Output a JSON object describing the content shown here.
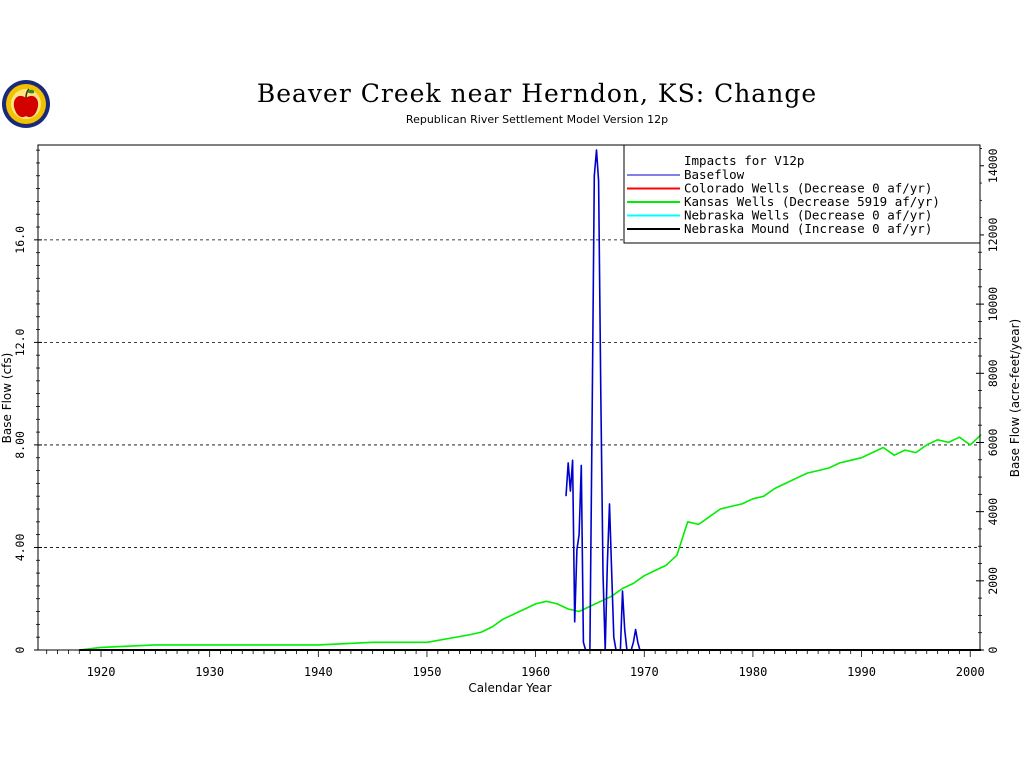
{
  "logo": {
    "icon": "apple-seal-icon"
  },
  "chart_data": {
    "type": "line",
    "title": "Beaver Creek near Herndon, KS: Change",
    "subtitle": "Republican River Settlement Model Version 12p",
    "xlabel": "Calendar Year",
    "ylabel": "Base Flow (cfs)",
    "y2label": "Base Flow (acre-feet/year)",
    "xlim": [
      1914.2,
      2000.9
    ],
    "ylim": [
      0,
      19.7
    ],
    "y2lim": [
      0,
      14600
    ],
    "xticks": [
      "1920",
      "1930",
      "1940",
      "1950",
      "1960",
      "1970",
      "1980",
      "1990",
      "2000"
    ],
    "yticks": [
      "0",
      "4.00",
      "8.00",
      "12.0",
      "16.0"
    ],
    "y2ticks": [
      "0",
      "2000",
      "4000",
      "6000",
      "8000",
      "10000",
      "12000",
      "14000"
    ],
    "grid": "horizontal dashed at y ticks",
    "legend_position": "top-right",
    "legend_title": "Impacts for V12p",
    "series": [
      {
        "name": "Baseflow",
        "color": "#0000cc",
        "axis": "left",
        "x": [
          1962.8,
          1963.0,
          1963.2,
          1963.4,
          1963.6,
          1963.8,
          1964.0,
          1964.2,
          1964.4,
          1964.6,
          1964.8,
          1965.0,
          1965.2,
          1965.4,
          1965.6,
          1965.8,
          1966.0,
          1966.2,
          1966.4,
          1966.6,
          1966.8,
          1967.0,
          1967.2,
          1967.4,
          1967.6,
          1967.8,
          1968.0,
          1968.2,
          1968.4,
          1968.6,
          1968.8,
          1969.0,
          1969.2,
          1969.4,
          1969.6
        ],
        "y": [
          6.0,
          7.3,
          6.2,
          7.4,
          1.1,
          3.9,
          4.5,
          7.2,
          0.3,
          0,
          0,
          0,
          9.0,
          18.5,
          19.5,
          18.3,
          10.0,
          3.0,
          0,
          3.3,
          5.7,
          3.0,
          0.5,
          0,
          0,
          0,
          2.3,
          0.8,
          0,
          0,
          0,
          0.3,
          0.8,
          0.3,
          0
        ]
      },
      {
        "name": "Colorado Wells  (Decrease    0 af/yr)",
        "color": "#ff0000",
        "axis": "left",
        "x": [
          1918,
          2001
        ],
        "y": [
          0,
          0
        ]
      },
      {
        "name": "Kansas Wells    (Decrease 5919 af/yr)",
        "color": "#00ee00",
        "axis": "left",
        "x": [
          1918,
          1920,
          1925,
          1930,
          1935,
          1940,
          1945,
          1950,
          1952,
          1954,
          1955,
          1956,
          1957,
          1958,
          1959,
          1960,
          1961,
          1962,
          1963,
          1964,
          1965,
          1966,
          1967,
          1968,
          1969,
          1970,
          1971,
          1972,
          1973,
          1974,
          1975,
          1976,
          1977,
          1978,
          1979,
          1980,
          1981,
          1982,
          1983,
          1984,
          1985,
          1986,
          1987,
          1988,
          1989,
          1990,
          1991,
          1992,
          1993,
          1994,
          1995,
          1996,
          1997,
          1998,
          1999,
          2000,
          2001
        ],
        "y": [
          0,
          0.1,
          0.2,
          0.2,
          0.2,
          0.2,
          0.3,
          0.3,
          0.45,
          0.6,
          0.7,
          0.9,
          1.2,
          1.4,
          1.6,
          1.8,
          1.9,
          1.8,
          1.6,
          1.5,
          1.7,
          1.9,
          2.1,
          2.4,
          2.6,
          2.9,
          3.1,
          3.3,
          3.7,
          5.0,
          4.9,
          5.2,
          5.5,
          5.6,
          5.7,
          5.9,
          6.0,
          6.3,
          6.5,
          6.7,
          6.9,
          7.0,
          7.1,
          7.3,
          7.4,
          7.5,
          7.7,
          7.9,
          7.6,
          7.8,
          7.7,
          8.0,
          8.2,
          8.1,
          8.3,
          8.0,
          8.4
        ]
      },
      {
        "name": "Nebraska Wells  (Decrease    0 af/yr)",
        "color": "#00ffff",
        "axis": "left",
        "x": [
          1918,
          2001
        ],
        "y": [
          0,
          0
        ]
      },
      {
        "name": "Nebraska Mound (Increase    0 af/yr)",
        "color": "#000000",
        "axis": "left",
        "x": [
          1918,
          2001
        ],
        "y": [
          0,
          0
        ]
      }
    ]
  }
}
